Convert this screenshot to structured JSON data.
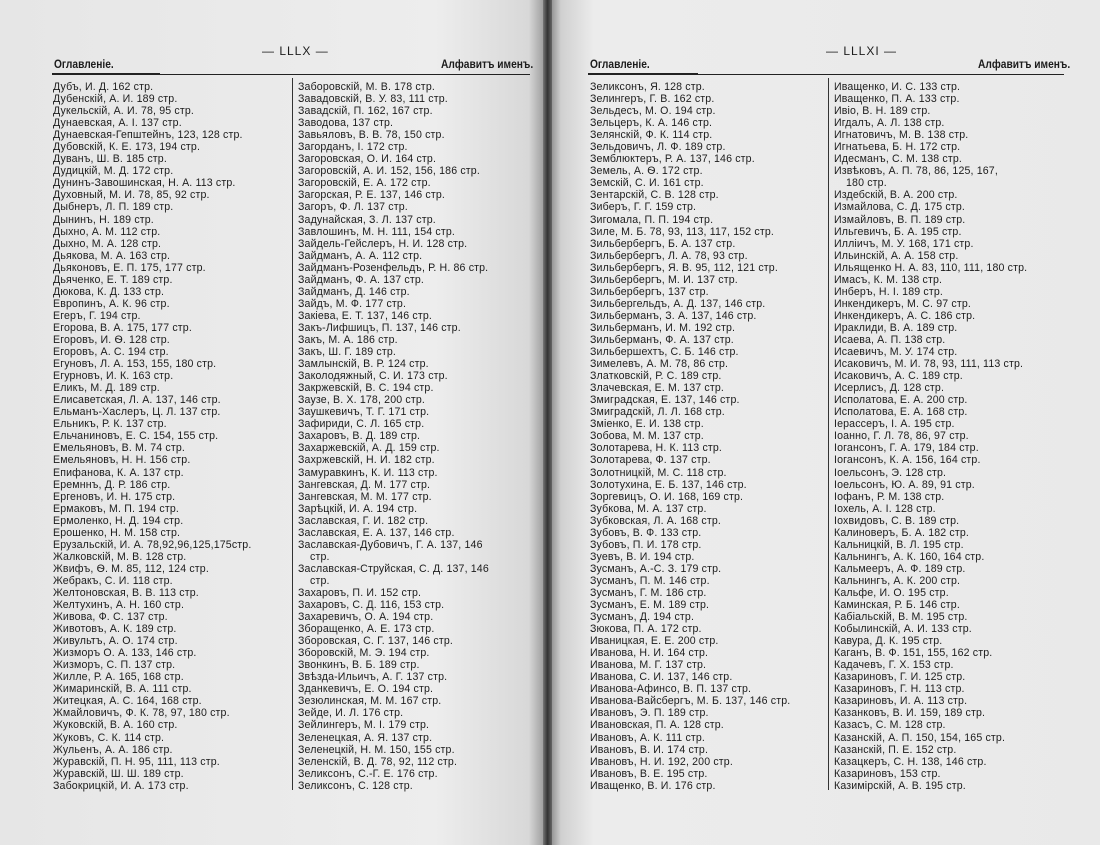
{
  "left_page": {
    "page_number": "— LLLX —",
    "header_left": "Оглавленіе.",
    "header_right": "Алфавитъ именъ.",
    "columns": [
      [
        "Дубъ, И. Д. 162 стр.",
        "Дубенскій, А. И. 189 стр.",
        "Дукельскій, А. И. 78, 95 стр.",
        "Дунаевская, А. І. 137 стр.",
        "Дунаевская-Гепштейнъ, 123, 128 стр.",
        "Дубовскій, К. Е. 173, 194 стр.",
        "Дуванъ, Ш. В. 185 стр.",
        "Дудицкій, М. Д. 172 стр.",
        "Дунинъ-Завошинская, Н. А. 113 стр.",
        "Духовный, М. И. 78, 85, 92 стр.",
        "Дыбнеръ, Л. П. 189 стр.",
        "Дынинъ, Н. 189 стр.",
        "Дыхно, А. М. 112 стр.",
        "Дыхно, М. А. 128 стр.",
        "Дьякова, М. А. 163 стр.",
        "Дьяконовъ, Е. П. 175, 177 стр.",
        "Дьяченко, Е. Т. 189 стр.",
        "Дюкова, К. Д. 133 стр.",
        "Европинъ, А. К. 96 стр.",
        "Егеръ, Г. 194 стр.",
        "Егорова, В. А. 175, 177 стр.",
        "Егоровъ, И. Ѳ. 128 стр.",
        "Егоровъ, А. С. 194 стр.",
        "Егуновъ, Л. А. 153, 155, 180 стр.",
        "Егурновъ, И. К. 163 стр.",
        "Еликъ, М. Д. 189 стр.",
        "Елисаветская, Л. А. 137, 146 стр.",
        "Ельманъ-Хаслеръ, Ц. Л. 137 стр.",
        "Ельникъ, Р. К. 137 стр.",
        "Ельчаниновъ, Е. С. 154, 155 стр.",
        "Емельяновъ, В. М. 74 стр.",
        "Емельяновъ, Н. Н. 156 стр.",
        "Епифанова, К. А. 137 стр.",
        "Еремннъ, Д. Р. 186 стр.",
        "Ергеновъ, И. Н. 175 стр.",
        "Ермаковъ, М. П. 194 стр.",
        "Ермоленко, Н. Д. 194 стр.",
        "Ерошенко, Н. М. 158 стр.",
        "Ерузальскій, И. А. 78,92,96,125,175стр.",
        "Жалковскій, М. В. 128 стр.",
        "Жвифъ, Ѳ. М. 85, 112, 124 стр.",
        "Жебракъ, С. И. 118 стр.",
        "Желтоновская, В. В. 113 стр.",
        "Желтухинъ, А. Н. 160 стр.",
        "Живова, Ф. С. 137 стр.",
        "Животовъ, А. К. 189 стр.",
        "Живультъ, А. О. 174 стр.",
        "Жизморъ О. А. 133, 146 стр.",
        "Жизморъ, С. П. 137 стр.",
        "Жилле, Р. А. 165, 168 стр.",
        "Жимаринскій, В. А. 111 стр.",
        "Житецкая, А. С. 164, 168 стр.",
        "Жмайловичъ, Ф. К. 78, 97, 180 стр.",
        "Жуковскій, В. А. 160 стр.",
        "Жуковъ, С. К. 114 стр.",
        "Жульенъ, А. А. 186 стр.",
        "Журавскій, П. Н. 95, 111, 113 стр.",
        "Журавскій, Ш. Ш. 189 стр.",
        "Забокрицкій, И. А. 173 стр."
      ],
      [
        "Заборовскій, М. В. 178 стр.",
        "Завадовскій, В. У. 83, 111 стр.",
        "Завадскій, П. 162, 167 стр.",
        "Заводова, 137 стр.",
        "Завьяловъ, В. В. 78, 150 стр.",
        "Загорданъ, І. 172 стр.",
        "Загоровская, О. И. 164 стр.",
        "Загоровскій, А. И. 152, 156, 186 стр.",
        "Загоровскій, Е. А. 172 стр.",
        "Загорская, Р. Е. 137, 146 стр.",
        "Загоръ, Ф. Л. 137 стр.",
        "Задунайская, З. Л. 137 стр.",
        "Завлошинъ, М. Н. 111, 154 стр.",
        "Зайдель-Гейслеръ, Н. И. 128 стр.",
        "Зайдманъ, А. А. 112 стр.",
        "Зайдманъ-Розенфельдъ, Р. Н. 86  стр.",
        "Зайдманъ, Ф. А. 137 стр.",
        "Зайдманъ, Д. 146 стр.",
        "Зайдъ, М. Ф. 177 стр.",
        "Закіева, Е. Т. 137, 146 стр.",
        "Закъ-Лифшицъ, П. 137, 146 стр.",
        "Закъ, М. А. 186 стр.",
        "Закъ, Ш. Г. 189 стр.",
        "Замлынскій, В. Р. 124 стр.",
        "Заколодяжный, С. И. 173 стр.",
        "Закржевскій, В. С. 194 стр.",
        "Заузе, В. Х. 178, 200 стр.",
        "Заушкевичъ, Т. Г. 171 стр.",
        "Зафириди, С. Л. 165 стр.",
        "Захаровъ, В. Д. 189 стр.",
        "Захаржевскій, А. Д. 159 стр.",
        "Захржевскій, Н. И. 182 стр.",
        "Замуравкинъ, К. И. 113 стр.",
        "Зангевская, Д. М. 177 стр.",
        "Зангевская, М. М. 177 стр.",
        "Зарѣцкій, И. А. 194 стр.",
        "Заславская, Г. И. 182 стр.",
        "Заславская, Е. А. 137, 146 стр.",
        [
          "Заславская-Дубовичъ, Г. А.  137,  146",
          "стр."
        ],
        [
          "Заславская-Струйская, С. Д. 137,  146",
          "стр."
        ],
        "Захаровъ, П. И. 152 стр.",
        "Захаровъ, С. Д. 116, 153 стр.",
        "Захаревичъ, О. А. 194 стр.",
        "Зборащенко, А. Е. 173 стр.",
        "Зборовская, С. Г. 137, 146 стр.",
        "Зборовскій, М. Э. 194 стр.",
        "Звонкинъ, В. Б. 189 стр.",
        "Звѣзда-Ильичъ, А. Г. 137 стр.",
        "Зданкевичъ, Е. О. 194 стр.",
        "Зезюлинская, М. М. 167 стр.",
        "Зейде, И. Л. 176 стр.",
        "Зейлингеръ, М. І. 179 стр.",
        "Зеленецкая, А. Я. 137 стр.",
        "Зеленецкій, Н. М. 150, 155 стр.",
        "Зеленскій, В. Д. 78, 92, 112 стр.",
        "Зеликсонъ, С.-Г. Е. 176 стр.",
        "Зеликсонъ, С. 128 стр."
      ]
    ]
  },
  "right_page": {
    "page_number": "— LLLXI —",
    "header_left": "Оглавленіе.",
    "header_right": "Алфавитъ именъ.",
    "columns": [
      [
        "Зеликсонъ, Я. 128 стр.",
        "Зелингеръ, Г. В. 162 стр.",
        "Зельдесъ, М. О. 194 стр.",
        "Зельцеръ, К. А. 146 стр.",
        "Зелянскій, Ф. К. 114 стр.",
        "Зельдовичъ, Л. Ф. 189 стр.",
        "Земблюктеръ, Р. А. 137, 146 стр.",
        "Земель, А. Ѳ. 172 стр.",
        "Земскій, С. И. 161 стр.",
        "Зентарскій, С. В. 128 стр.",
        "Зиберъ, Г. Г. 159 стр.",
        "Зигомала, П. П. 194 стр.",
        "Зиле, М. Б. 78, 93, 113, 117, 152 стр.",
        "Зильбербергъ, Б. А. 137 стр.",
        "Зильбербергъ, Л. А. 78, 93 стр.",
        "Зильбербергъ, Я. В. 95, 112, 121 стр.",
        "Зильбербергъ, М. И. 137 стр.",
        "Зильбербергъ, 137 стр.",
        "Зильбергельдъ, А. Д. 137, 146 стр.",
        "Зильберманъ, З. А. 137, 146 стр.",
        "Зильберманъ, И. М. 192 стр.",
        "Зильберманъ, Ф. А. 137 стр.",
        "Зильбершехтъ, С. Б. 146 стр.",
        "Зимелевъ, А. М. 78, 86 стр.",
        "Златковскій, Р. С. 189 стр.",
        "Злачевская, Е. М. 137 стр.",
        "Змиградская, Е. 137, 146 стр.",
        "Змиградскій, Л. Л. 168 стр.",
        "Змiенко, Е. И. 138 стр.",
        "Зобова, М. М. 137 стр.",
        "Золотарева, Н. К. 113 стр.",
        "Золотарева, Ф. 137 стр.",
        "Золотницкій, М. С. 118 стр.",
        "Золотухина, Е. Б. 137, 146 стр.",
        "Зоргевицъ, О. И. 168, 169 стр.",
        "Зубкова, М. А. 137 стр.",
        "Зубковская, Л. А. 168 стр.",
        "Зубовъ, В. Ф. 133 стр.",
        "Зубовъ, П. И. 178 стр.",
        "Зуевъ, В. И. 194 стр.",
        "Зусманъ, А.-С. З. 179 стр.",
        "Зусманъ, П. М. 146 стр.",
        "Зусманъ, Г. М. 186 стр.",
        "Зусманъ, Е. М. 189 стр.",
        "Зусманъ, Д. 194 стр.",
        "Зюкова, П. А. 172 стр.",
        "Иваницкая, Е. Е. 200 стр.",
        "Иванова, Н. И. 164 стр.",
        "Иванова, М. Г. 137 стр.",
        "Иванова, С. И. 137, 146 стр.",
        "Иванова-Афинсо, В. П. 137 стр.",
        "Иванова-Вайсбергъ, М. Б. 137, 146 стр.",
        "Ивановъ, Э. П. 189 стр.",
        "Ивановская, П. А. 128 стр.",
        "Ивановъ, А. К. 111 стр.",
        "Ивановъ, В. И. 174 стр.",
        "Ивановъ, Н. И. 192, 200 стр.",
        "Ивановъ, В. Е. 195 стр.",
        "Иващенко, В. И. 176 стр."
      ],
      [
        "Иващенко, И. С. 133 стр.",
        "Иващенко, П. А. 133 стр.",
        "Ивiо, В. Н. 189 стр.",
        "Игдалъ, А. Л. 138 стр.",
        "Игнатовичъ, М. В. 138 стр.",
        "Игнатьева, Б. Н. 172 стр.",
        "Идесманъ, С. М. 138 стр.",
        [
          "Извѣковъ, А. П. 78, 86, 125, 167,",
          "180 стр."
        ],
        "Издебскій, В. А. 200 стр.",
        "Измайлова, С. Д. 175 стр.",
        "Измайловъ, В. П. 189 стр.",
        "Ильгевичъ, Б. А. 195 стр.",
        "Илліичъ, М. У. 168, 171 стр.",
        "Ильинскій, А. А. 158 стр.",
        "Ильященко Н. А. 83, 110, 111, 180 стр.",
        "Имасъ, К. М. 138 стр.",
        "Инберъ, Н. І. 189 стр.",
        "Инкендикеръ, М. С. 97 стр.",
        "Инкендикеръ, А. С. 186 стр.",
        "Ираклиди, В. А. 189 стр.",
        "Исаева, А. П. 138 стр.",
        "Исаевичъ, М. У. 174 стр.",
        "Исаковичъ, М. И. 78, 93, 111, 113 стр.",
        "Исаковичъ, А. С. 189 стр.",
        "Исерлисъ, Д. 128 стр.",
        "Исполатова, Е. А. 200 стр.",
        "Исполатова, Е. А. 168 стр.",
        "Іерассеръ, І. А. 195 стр.",
        "Іоанно, Г. Л. 78, 86, 97 стр.",
        "Іогансонъ, Г. А. 179, 184 стр.",
        "Іогансонъ, К. А. 156, 164 стр.",
        "Іоельсонъ, Э. 128 стр.",
        "Іоельсонъ, Ю. А. 89, 91 стр.",
        "Іофанъ, Р. М. 138 стр.",
        "Іохель, А. І. 128 стр.",
        "Іохвидовъ, С. В. 189 стр.",
        "Калиноверъ, Б. А. 182 стр.",
        "Кальницкій, В. Л. 195 стр.",
        "Кальнингъ, А. К. 160, 164 стр.",
        "Кальмееръ, А. Ф. 189 стр.",
        "Кальнингъ, А. К. 200 стр.",
        "Кальфе, И. О. 195 стр.",
        "Каминская, Р. Б. 146 стр.",
        "Кабіальскій, В. М. 195 стр.",
        "Кобылинскій, А. И. 133 стр.",
        "Кавура, Д. К. 195 стр.",
        "Каганъ, В. Ф. 151, 155, 162 стр.",
        "Кадачевъ, Г. Х. 153 стр.",
        "Казариновъ, Г. И. 125 стр.",
        "Казариновъ, Г. Н. 113 стр.",
        "Казариновъ, И. А. 113 стр.",
        "Казанковъ, В. И. 159, 189 стр.",
        "Казасъ, С. М. 128 стр.",
        "Казанскій, А. П. 150, 154, 165 стр.",
        "Казанскій, П. Е. 152 стр.",
        "Казацкеръ, С. Н. 138, 146 стр.",
        "Казариновъ, 153 стр.",
        "Казимірскій, А. В. 195 стр."
      ]
    ]
  }
}
